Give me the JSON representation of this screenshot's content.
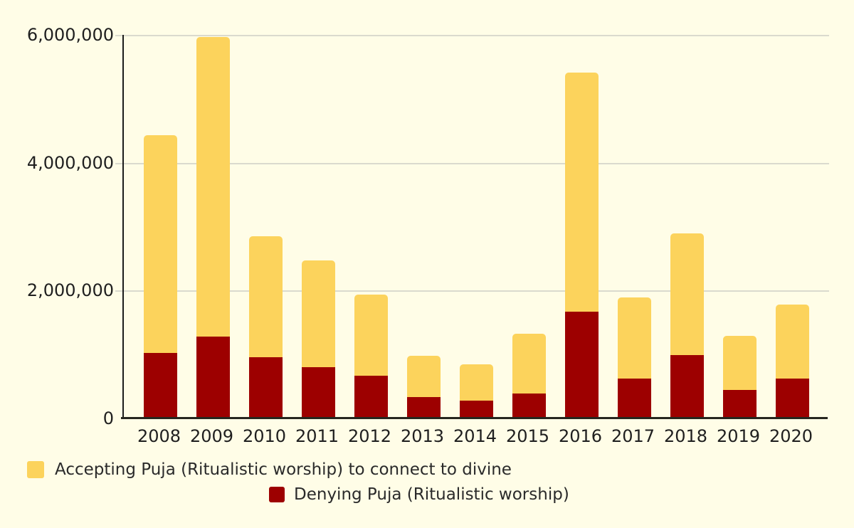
{
  "page": {
    "background": "#FFFDE7",
    "gridline_color": "#DADACE",
    "axis_color": "#26261E",
    "text_color": "#1F1F1F"
  },
  "chart_data": {
    "type": "bar",
    "stacked": true,
    "grid": true,
    "legend_position": "bottom",
    "categories": [
      "2008",
      "2009",
      "2010",
      "2011",
      "2012",
      "2013",
      "2014",
      "2015",
      "2016",
      "2017",
      "2018",
      "2019",
      "2020"
    ],
    "series": [
      {
        "name": "Accepting Puja (Ritualistic worship) to connect to divine",
        "color": "#FCD35C",
        "values": [
          3410000,
          4690000,
          1890000,
          1670000,
          1270000,
          650000,
          570000,
          940000,
          3740000,
          1270000,
          1910000,
          840000,
          1160000
        ]
      },
      {
        "name": "Denying Puja (Ritualistic worship)",
        "color": "#9D0000",
        "values": [
          1020000,
          1280000,
          960000,
          800000,
          670000,
          330000,
          280000,
          390000,
          1670000,
          620000,
          990000,
          450000,
          620000
        ]
      }
    ],
    "stack_totals": [
      4430000,
      5970000,
      2850000,
      2470000,
      1940000,
      980000,
      850000,
      1330000,
      5410000,
      1890000,
      2900000,
      1290000,
      1780000
    ],
    "ylim": [
      0,
      6000000
    ],
    "yticks": {
      "values": [
        6000000,
        4000000,
        2000000,
        0
      ],
      "labels": [
        "6,000,000",
        "4,000,000",
        "2,000,000",
        "0"
      ]
    },
    "title": "",
    "xlabel": "",
    "ylabel": ""
  }
}
